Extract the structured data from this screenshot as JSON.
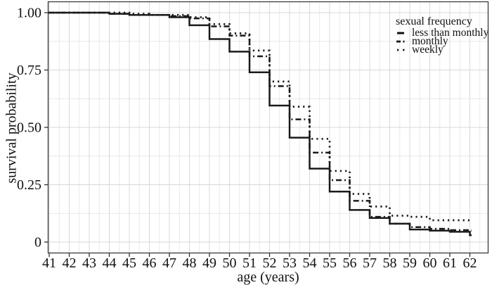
{
  "figure": {
    "background": "#ffffff",
    "line_color": "#1a1a1a",
    "grid_major_color": "#d8d8d8",
    "grid_minor_color": "#e9e9e9",
    "border_color": "#3a3a3a",
    "tick_color": "#333333"
  },
  "legend": {
    "title": "sexual frequency",
    "items": [
      {
        "label": "less than monthly",
        "style": "solid"
      },
      {
        "label": "monthly",
        "style": "dashdot"
      },
      {
        "label": "weekly",
        "style": "dotted"
      }
    ]
  },
  "chart_data": {
    "type": "line",
    "subtype": "step-survival",
    "title": "",
    "xlabel": "age (years)",
    "ylabel": "survival probability",
    "xlim": [
      41,
      62
    ],
    "ylim": [
      0,
      1
    ],
    "grid": true,
    "legend_position": "top-right",
    "x": [
      41,
      42,
      43,
      44,
      45,
      46,
      47,
      48,
      49,
      50,
      51,
      52,
      53,
      54,
      55,
      56,
      57,
      58,
      59,
      60,
      61,
      62
    ],
    "x_tick_labels": [
      "41",
      "42",
      "43",
      "44",
      "45",
      "46",
      "47",
      "48",
      "49",
      "50",
      "51",
      "52",
      "53",
      "54",
      "55",
      "56",
      "57",
      "58",
      "59",
      "60",
      "61",
      "62"
    ],
    "y_ticks": [
      {
        "value": 1.0,
        "label": "1.00"
      },
      {
        "value": 0.75,
        "label": "0.75"
      },
      {
        "value": 0.5,
        "label": "0.50"
      },
      {
        "value": 0.25,
        "label": "0.25"
      },
      {
        "value": 0.0,
        "label": "0"
      }
    ],
    "y_minor_ticks": [
      0.125,
      0.375,
      0.625,
      0.875
    ],
    "series": [
      {
        "name": "less than monthly",
        "style": "solid",
        "values": [
          1.0,
          1.0,
          1.0,
          0.995,
          0.99,
          0.99,
          0.98,
          0.945,
          0.885,
          0.83,
          0.74,
          0.595,
          0.455,
          0.32,
          0.22,
          0.14,
          0.105,
          0.08,
          0.055,
          0.05,
          0.045,
          0.03
        ]
      },
      {
        "name": "monthly",
        "style": "dashdot",
        "values": [
          1.0,
          1.0,
          1.0,
          0.995,
          0.99,
          0.99,
          0.985,
          0.975,
          0.94,
          0.9,
          0.81,
          0.68,
          0.535,
          0.39,
          0.27,
          0.18,
          0.11,
          0.08,
          0.065,
          0.058,
          0.052,
          0.05
        ]
      },
      {
        "name": "weekly",
        "style": "dotted",
        "values": [
          1.0,
          1.0,
          1.0,
          1.0,
          0.995,
          0.99,
          0.99,
          0.98,
          0.95,
          0.91,
          0.835,
          0.7,
          0.59,
          0.45,
          0.31,
          0.21,
          0.155,
          0.115,
          0.11,
          0.095,
          0.095,
          0.09
        ]
      }
    ]
  }
}
